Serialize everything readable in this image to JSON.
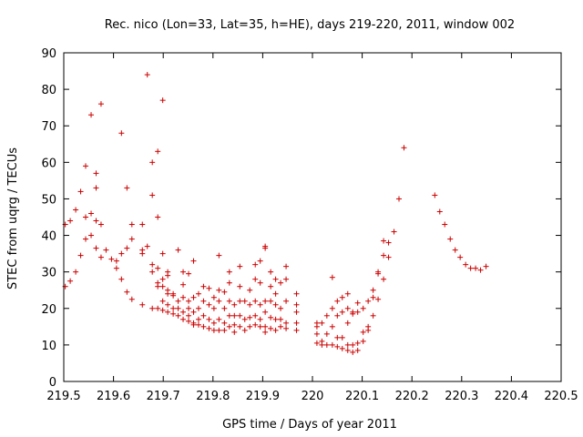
{
  "chart_data": {
    "type": "scatter",
    "title": "Rec. nico (Lon=33, Lat=35, h=HE), days 219-220, 2011, window 002",
    "xlabel": "GPS time / Days of year 2011",
    "ylabel": "STEC from uqrg / TECUs",
    "xlim": [
      219.5,
      220.5
    ],
    "ylim": [
      0,
      90
    ],
    "xticks": [
      219.5,
      219.6,
      219.7,
      219.8,
      219.9,
      220,
      220.1,
      220.2,
      220.3,
      220.4,
      220.5
    ],
    "xtick_labels": [
      "219.5",
      "219.6",
      "219.7",
      "219.8",
      "219.9",
      "220",
      "220.1",
      "220.2",
      "220.3",
      "220.4",
      "220.5"
    ],
    "yticks": [
      0,
      10,
      20,
      30,
      40,
      50,
      60,
      70,
      80,
      90
    ],
    "ytick_labels": [
      "0",
      "10",
      "20",
      "30",
      "40",
      "50",
      "60",
      "70",
      "80",
      "90"
    ],
    "marker": "+",
    "color": "#cc0000",
    "series": [
      {
        "name": "STEC",
        "points": [
          [
            219.503,
            43
          ],
          [
            219.513,
            44
          ],
          [
            219.503,
            26
          ],
          [
            219.513,
            27.5
          ],
          [
            219.524,
            30
          ],
          [
            219.524,
            47
          ],
          [
            219.534,
            52
          ],
          [
            219.544,
            59
          ],
          [
            219.544,
            45
          ],
          [
            219.534,
            34.5
          ],
          [
            219.555,
            46
          ],
          [
            219.565,
            44
          ],
          [
            219.555,
            73
          ],
          [
            219.565,
            57
          ],
          [
            219.565,
            53
          ],
          [
            219.555,
            40
          ],
          [
            219.544,
            39
          ],
          [
            219.565,
            36.5
          ],
          [
            219.575,
            43
          ],
          [
            219.575,
            76
          ],
          [
            219.585,
            36
          ],
          [
            219.575,
            34
          ],
          [
            219.596,
            33.5
          ],
          [
            219.606,
            33
          ],
          [
            219.606,
            31
          ],
          [
            219.616,
            68
          ],
          [
            219.616,
            35
          ],
          [
            219.616,
            28
          ],
          [
            219.627,
            53
          ],
          [
            219.627,
            36.5
          ],
          [
            219.637,
            43
          ],
          [
            219.637,
            39
          ],
          [
            219.627,
            24.5
          ],
          [
            219.637,
            22.5
          ],
          [
            219.658,
            43
          ],
          [
            219.658,
            36
          ],
          [
            219.658,
            35
          ],
          [
            219.658,
            21
          ],
          [
            219.668,
            84
          ],
          [
            219.668,
            37
          ],
          [
            219.678,
            60
          ],
          [
            219.678,
            51
          ],
          [
            219.678,
            32
          ],
          [
            219.678,
            30
          ],
          [
            219.678,
            20
          ],
          [
            219.689,
            63
          ],
          [
            219.689,
            45
          ],
          [
            219.689,
            31
          ],
          [
            219.689,
            27
          ],
          [
            219.689,
            26
          ],
          [
            219.689,
            20
          ],
          [
            219.699,
            77
          ],
          [
            219.699,
            35
          ],
          [
            219.699,
            28
          ],
          [
            219.699,
            26
          ],
          [
            219.699,
            22
          ],
          [
            219.699,
            19.5
          ],
          [
            219.709,
            30
          ],
          [
            219.709,
            29
          ],
          [
            219.709,
            25
          ],
          [
            219.709,
            24
          ],
          [
            219.709,
            21
          ],
          [
            219.709,
            19
          ],
          [
            219.72,
            24
          ],
          [
            219.72,
            23.5
          ],
          [
            219.72,
            20
          ],
          [
            219.72,
            18.5
          ],
          [
            219.73,
            36
          ],
          [
            219.73,
            22
          ],
          [
            219.73,
            20
          ],
          [
            219.73,
            18
          ],
          [
            219.74,
            30
          ],
          [
            219.74,
            26.5
          ],
          [
            219.74,
            23
          ],
          [
            219.74,
            19
          ],
          [
            219.74,
            17
          ],
          [
            219.751,
            29.5
          ],
          [
            219.751,
            22
          ],
          [
            219.751,
            20
          ],
          [
            219.751,
            18
          ],
          [
            219.751,
            16.5
          ],
          [
            219.761,
            33
          ],
          [
            219.761,
            23
          ],
          [
            219.761,
            19
          ],
          [
            219.761,
            16
          ],
          [
            219.761,
            15.5
          ],
          [
            219.771,
            24
          ],
          [
            219.771,
            20
          ],
          [
            219.771,
            17
          ],
          [
            219.771,
            15.5
          ],
          [
            219.781,
            26
          ],
          [
            219.781,
            22
          ],
          [
            219.781,
            18
          ],
          [
            219.781,
            15
          ],
          [
            219.792,
            25.5
          ],
          [
            219.792,
            21
          ],
          [
            219.792,
            17
          ],
          [
            219.792,
            14.5
          ],
          [
            219.802,
            23
          ],
          [
            219.802,
            20
          ],
          [
            219.802,
            16
          ],
          [
            219.802,
            14
          ],
          [
            219.812,
            34.5
          ],
          [
            219.812,
            25
          ],
          [
            219.812,
            22
          ],
          [
            219.812,
            17
          ],
          [
            219.812,
            14
          ],
          [
            219.823,
            24.5
          ],
          [
            219.823,
            20
          ],
          [
            219.823,
            16
          ],
          [
            219.823,
            14
          ],
          [
            219.833,
            30
          ],
          [
            219.833,
            27
          ],
          [
            219.833,
            22
          ],
          [
            219.833,
            18
          ],
          [
            219.833,
            15
          ],
          [
            219.843,
            21
          ],
          [
            219.843,
            18
          ],
          [
            219.843,
            15.5
          ],
          [
            219.843,
            13.5
          ],
          [
            219.854,
            31.5
          ],
          [
            219.854,
            26
          ],
          [
            219.854,
            22
          ],
          [
            219.854,
            18
          ],
          [
            219.854,
            15
          ],
          [
            219.864,
            22
          ],
          [
            219.864,
            17
          ],
          [
            219.864,
            14
          ],
          [
            219.874,
            25
          ],
          [
            219.874,
            21
          ],
          [
            219.874,
            17.5
          ],
          [
            219.874,
            15
          ],
          [
            219.885,
            32
          ],
          [
            219.885,
            28
          ],
          [
            219.885,
            22
          ],
          [
            219.885,
            18
          ],
          [
            219.885,
            15.5
          ],
          [
            219.895,
            33
          ],
          [
            219.895,
            27
          ],
          [
            219.895,
            21
          ],
          [
            219.895,
            17
          ],
          [
            219.895,
            15
          ],
          [
            219.905,
            37
          ],
          [
            219.905,
            36.5
          ],
          [
            219.905,
            22
          ],
          [
            219.905,
            19
          ],
          [
            219.905,
            15
          ],
          [
            219.905,
            13.5
          ],
          [
            219.916,
            30
          ],
          [
            219.916,
            26
          ],
          [
            219.916,
            22
          ],
          [
            219.916,
            17.5
          ],
          [
            219.916,
            14.5
          ],
          [
            219.926,
            28
          ],
          [
            219.926,
            24
          ],
          [
            219.926,
            21
          ],
          [
            219.926,
            17
          ],
          [
            219.926,
            14
          ],
          [
            219.936,
            27
          ],
          [
            219.936,
            20
          ],
          [
            219.936,
            17
          ],
          [
            219.936,
            15
          ],
          [
            219.947,
            31.5
          ],
          [
            219.947,
            28
          ],
          [
            219.947,
            22
          ],
          [
            219.947,
            16
          ],
          [
            219.947,
            14.5
          ],
          [
            219.968,
            24
          ],
          [
            219.968,
            21
          ],
          [
            219.968,
            19
          ],
          [
            219.968,
            16
          ],
          [
            219.968,
            14
          ],
          [
            220.009,
            16
          ],
          [
            220.009,
            15
          ],
          [
            220.009,
            13
          ],
          [
            220.009,
            10.5
          ],
          [
            220.019,
            16
          ],
          [
            220.019,
            11
          ],
          [
            220.019,
            10
          ],
          [
            220.029,
            18
          ],
          [
            220.029,
            13
          ],
          [
            220.029,
            10
          ],
          [
            220.04,
            28.5
          ],
          [
            220.04,
            20
          ],
          [
            220.04,
            15
          ],
          [
            220.04,
            10
          ],
          [
            220.05,
            22
          ],
          [
            220.05,
            18
          ],
          [
            220.05,
            12
          ],
          [
            220.05,
            9.5
          ],
          [
            220.06,
            23
          ],
          [
            220.06,
            19
          ],
          [
            220.06,
            12
          ],
          [
            220.06,
            9
          ],
          [
            220.071,
            24
          ],
          [
            220.071,
            20
          ],
          [
            220.071,
            16
          ],
          [
            220.071,
            10
          ],
          [
            220.071,
            8.5
          ],
          [
            220.081,
            19
          ],
          [
            220.081,
            18.5
          ],
          [
            220.081,
            10
          ],
          [
            220.081,
            8
          ],
          [
            220.091,
            21.5
          ],
          [
            220.091,
            19
          ],
          [
            220.091,
            10.5
          ],
          [
            220.091,
            8.5
          ],
          [
            220.102,
            20
          ],
          [
            220.102,
            13.5
          ],
          [
            220.102,
            11
          ],
          [
            220.112,
            22
          ],
          [
            220.112,
            15
          ],
          [
            220.112,
            14
          ],
          [
            220.122,
            25
          ],
          [
            220.122,
            23
          ],
          [
            220.122,
            18
          ],
          [
            220.132,
            30
          ],
          [
            220.132,
            29.5
          ],
          [
            220.132,
            22.5
          ],
          [
            220.143,
            38.5
          ],
          [
            220.143,
            34.5
          ],
          [
            220.143,
            28
          ],
          [
            220.153,
            38
          ],
          [
            220.153,
            34
          ],
          [
            220.164,
            41
          ],
          [
            220.174,
            50
          ],
          [
            220.184,
            64
          ],
          [
            220.246,
            51
          ],
          [
            220.256,
            46.5
          ],
          [
            220.266,
            43
          ],
          [
            220.277,
            39
          ],
          [
            220.287,
            36
          ],
          [
            220.297,
            34
          ],
          [
            220.308,
            32
          ],
          [
            220.318,
            31
          ],
          [
            220.328,
            31
          ],
          [
            220.338,
            30.5
          ],
          [
            220.349,
            31.5
          ]
        ]
      }
    ]
  }
}
